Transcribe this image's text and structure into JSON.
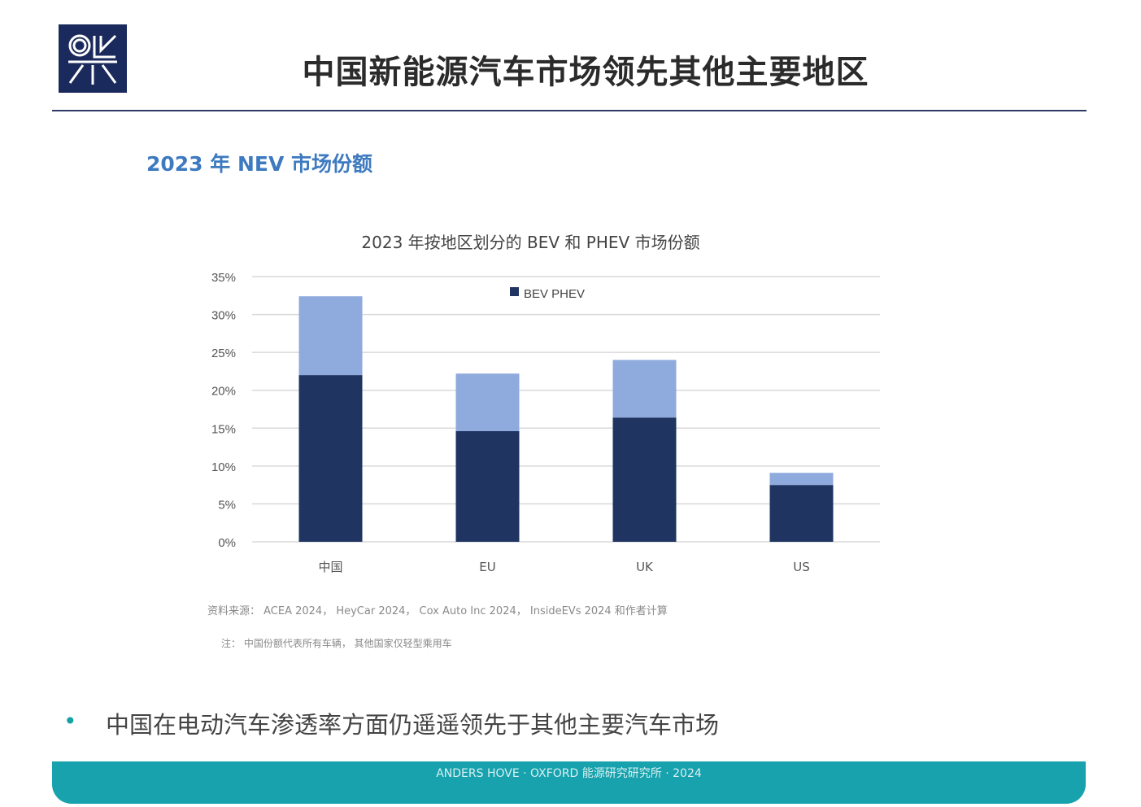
{
  "header": {
    "title": "中国新能源汽车市场领先其他主要地区",
    "logo_text": "OK"
  },
  "section": {
    "subtitle": "2023 年 NEV 市场份额"
  },
  "chart_data": {
    "type": "bar",
    "stacked": true,
    "title": "2023 年按地区划分的 BEV 和 PHEV 市场份额",
    "categories": [
      "中国",
      "EU",
      "UK",
      "US"
    ],
    "series": [
      {
        "name": "BEV",
        "color": "#1f3461",
        "values": [
          22.0,
          14.6,
          16.4,
          7.5
        ]
      },
      {
        "name": "PHEV",
        "color": "#8faadc",
        "values": [
          10.4,
          7.6,
          7.6,
          1.6
        ]
      }
    ],
    "legend_label": "BEV PHEV",
    "legend_position": "top-center",
    "ylim": [
      0,
      35
    ],
    "yticks": [
      "0%",
      "5%",
      "10%",
      "15%",
      "20%",
      "25%",
      "30%",
      "35%"
    ],
    "grid": true,
    "xlabel": "",
    "ylabel": ""
  },
  "notes": {
    "source": "资料来源： ACEA 2024， HeyCar 2024， Cox Auto Inc 2024， InsideEVs 2024 和作者计算",
    "note": "注： 中国份额代表所有车辆， 其他国家仅轻型乘用车"
  },
  "bullet": {
    "text": "中国在电动汽车渗透率方面仍遥遥领先于其他主要汽车市场"
  },
  "footer": {
    "text": "ANDERS HOVE · OXFORD 能源研究研究所 · 2024"
  }
}
